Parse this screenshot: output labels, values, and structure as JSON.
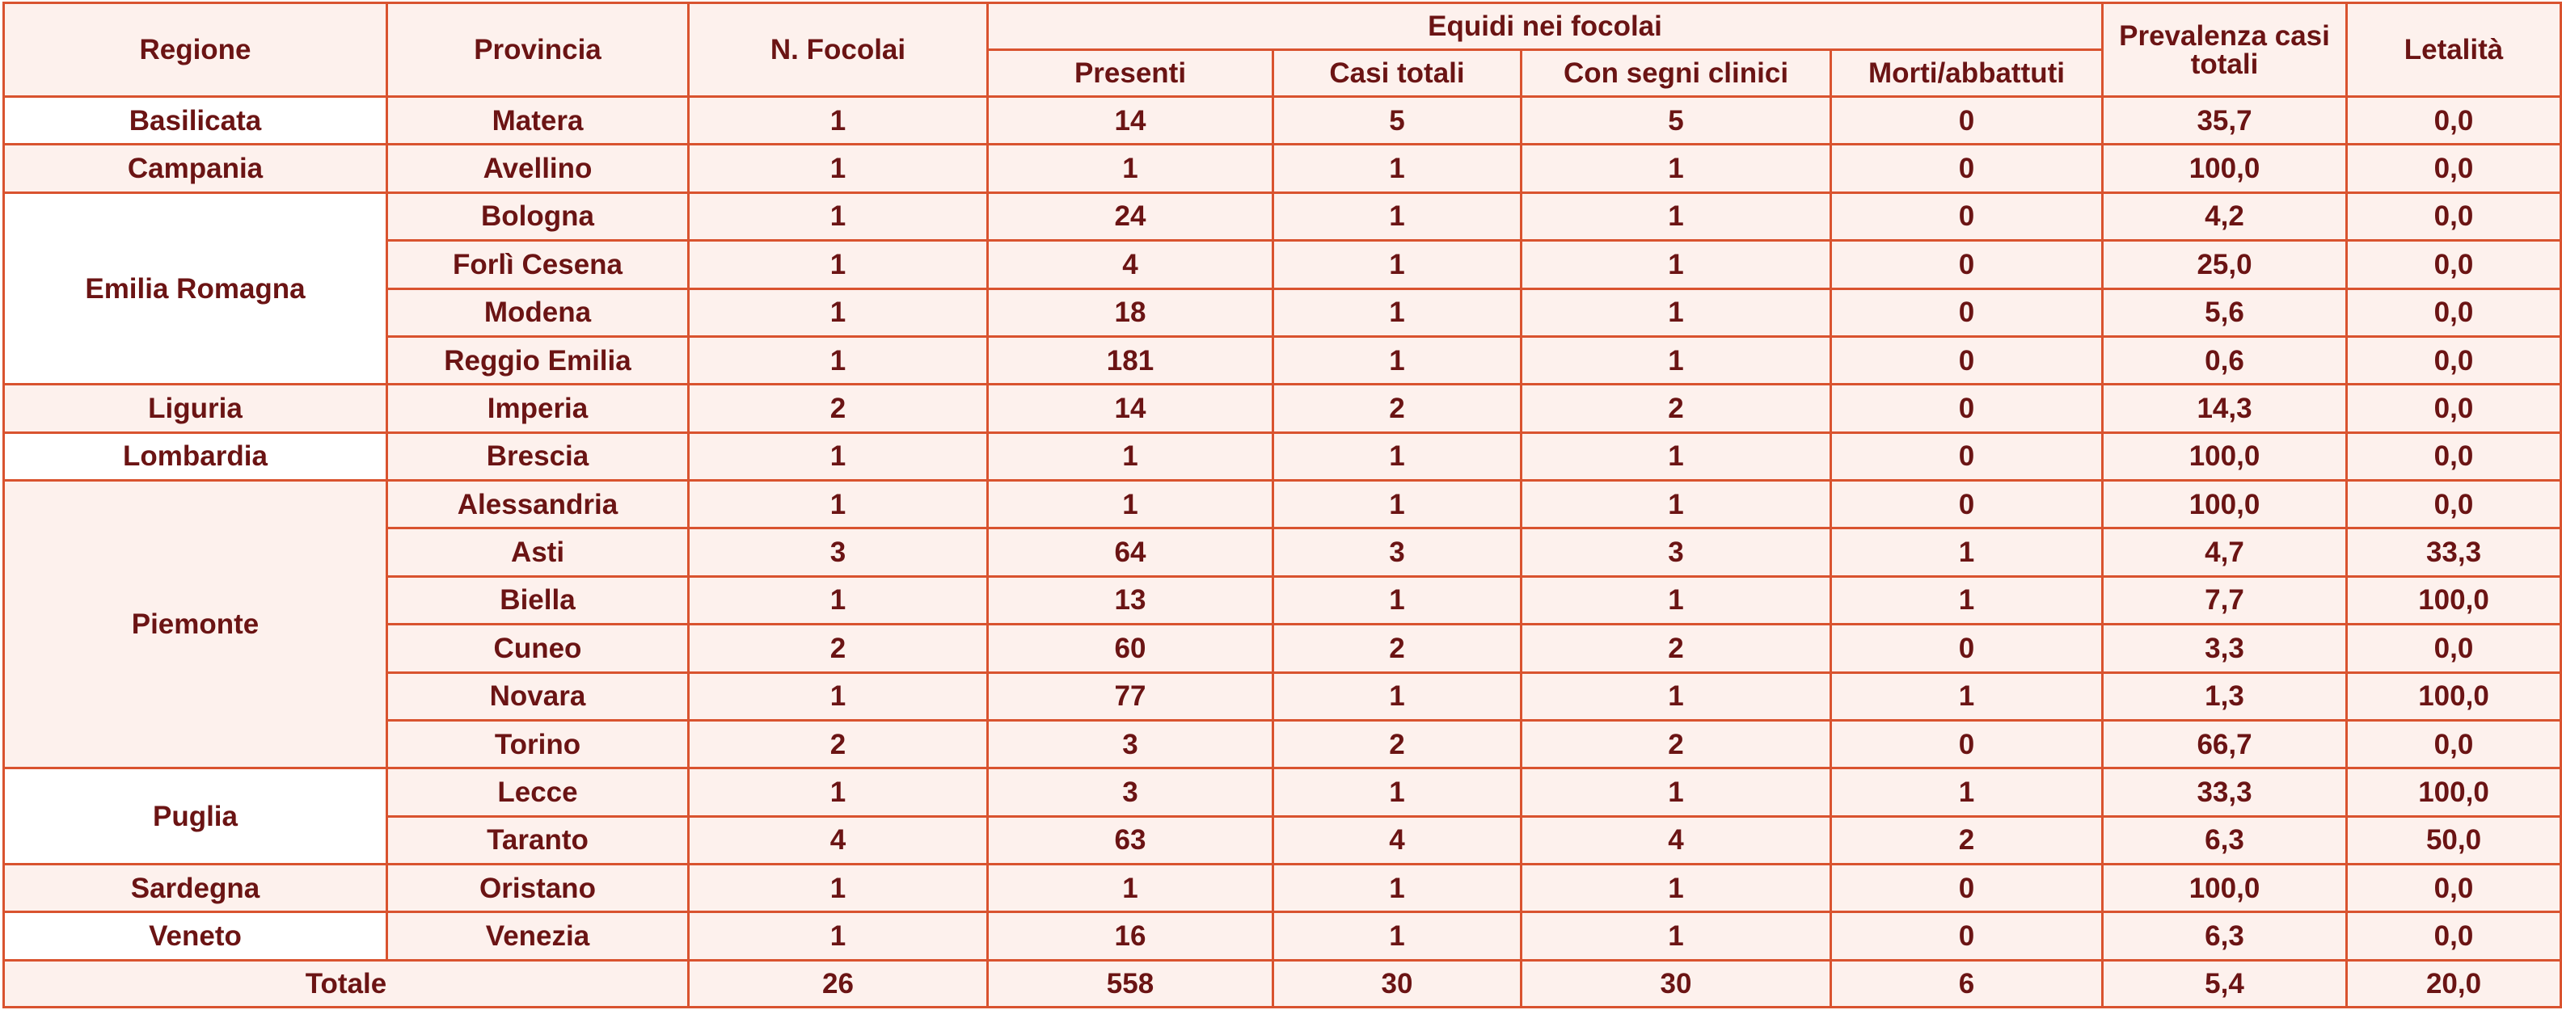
{
  "colors": {
    "border": "#d9532f",
    "text": "#6b1414",
    "shade": "#fdf1ed"
  },
  "headers": {
    "regione": "Regione",
    "provincia": "Provincia",
    "focolai": "N. Focolai",
    "equidi": "Equidi nei focolai",
    "presenti": "Presenti",
    "casi": "Casi totali",
    "segni": "Con segni clinici",
    "morti": "Morti/abbattuti",
    "prevalenza_l1": "Prevalenza casi",
    "prevalenza_l2": "totali",
    "letalita": "Letalità"
  },
  "regions": [
    {
      "name": "Basilicata",
      "rows": [
        [
          "Matera",
          "1",
          "14",
          "5",
          "5",
          "0",
          "35,7",
          "0,0"
        ]
      ]
    },
    {
      "name": "Campania",
      "rows": [
        [
          "Avellino",
          "1",
          "1",
          "1",
          "1",
          "0",
          "100,0",
          "0,0"
        ]
      ]
    },
    {
      "name": "Emilia Romagna",
      "rows": [
        [
          "Bologna",
          "1",
          "24",
          "1",
          "1",
          "0",
          "4,2",
          "0,0"
        ],
        [
          "Forlì Cesena",
          "1",
          "4",
          "1",
          "1",
          "0",
          "25,0",
          "0,0"
        ],
        [
          "Modena",
          "1",
          "18",
          "1",
          "1",
          "0",
          "5,6",
          "0,0"
        ],
        [
          "Reggio Emilia",
          "1",
          "181",
          "1",
          "1",
          "0",
          "0,6",
          "0,0"
        ]
      ]
    },
    {
      "name": "Liguria",
      "rows": [
        [
          "Imperia",
          "2",
          "14",
          "2",
          "2",
          "0",
          "14,3",
          "0,0"
        ]
      ]
    },
    {
      "name": "Lombardia",
      "rows": [
        [
          "Brescia",
          "1",
          "1",
          "1",
          "1",
          "0",
          "100,0",
          "0,0"
        ]
      ]
    },
    {
      "name": "Piemonte",
      "rows": [
        [
          "Alessandria",
          "1",
          "1",
          "1",
          "1",
          "0",
          "100,0",
          "0,0"
        ],
        [
          "Asti",
          "3",
          "64",
          "3",
          "3",
          "1",
          "4,7",
          "33,3"
        ],
        [
          "Biella",
          "1",
          "13",
          "1",
          "1",
          "1",
          "7,7",
          "100,0"
        ],
        [
          "Cuneo",
          "2",
          "60",
          "2",
          "2",
          "0",
          "3,3",
          "0,0"
        ],
        [
          "Novara",
          "1",
          "77",
          "1",
          "1",
          "1",
          "1,3",
          "100,0"
        ],
        [
          "Torino",
          "2",
          "3",
          "2",
          "2",
          "0",
          "66,7",
          "0,0"
        ]
      ]
    },
    {
      "name": "Puglia",
      "rows": [
        [
          "Lecce",
          "1",
          "3",
          "1",
          "1",
          "1",
          "33,3",
          "100,0"
        ],
        [
          "Taranto",
          "4",
          "63",
          "4",
          "4",
          "2",
          "6,3",
          "50,0"
        ]
      ]
    },
    {
      "name": "Sardegna",
      "rows": [
        [
          "Oristano",
          "1",
          "1",
          "1",
          "1",
          "0",
          "100,0",
          "0,0"
        ]
      ]
    },
    {
      "name": "Veneto",
      "rows": [
        [
          "Venezia",
          "1",
          "16",
          "1",
          "1",
          "0",
          "6,3",
          "0,0"
        ]
      ]
    }
  ],
  "total": {
    "label": "Totale",
    "values": [
      "26",
      "558",
      "30",
      "30",
      "6",
      "5,4",
      "20,0"
    ]
  }
}
